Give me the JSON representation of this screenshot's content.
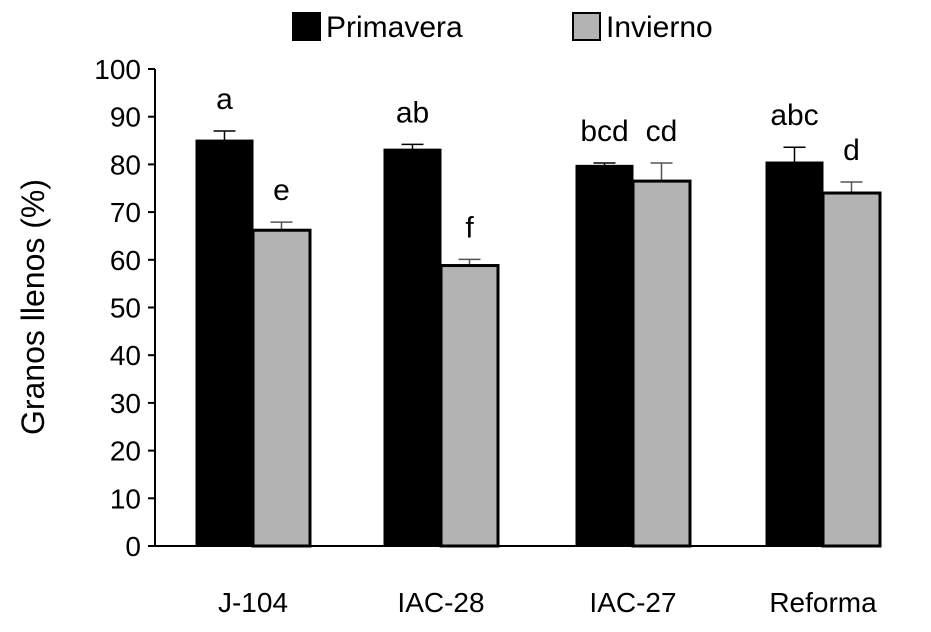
{
  "chart_data": {
    "type": "bar",
    "title": "",
    "xlabel": "",
    "ylabel": "Granos llenos (%)",
    "ylim": [
      0,
      100
    ],
    "yticks": [
      0,
      10,
      20,
      30,
      40,
      50,
      60,
      70,
      80,
      90,
      100
    ],
    "grid": false,
    "legend_position": "top",
    "categories": [
      "J-104",
      "IAC-28",
      "IAC-27",
      "Reforma"
    ],
    "series": [
      {
        "name": "Primavera",
        "color": "#000000",
        "values": [
          85.1,
          83.2,
          79.8,
          80.5
        ],
        "errors": [
          1.9,
          1.0,
          0.5,
          3.1
        ],
        "letters": [
          "a",
          "ab",
          "bcd",
          "abc"
        ]
      },
      {
        "name": "Invierno",
        "color": "#b3b3b3",
        "values": [
          66.2,
          58.8,
          76.5,
          74.0
        ],
        "errors": [
          1.7,
          1.3,
          3.8,
          2.3
        ],
        "letters": [
          "e",
          "f",
          "cd",
          "d"
        ]
      }
    ]
  }
}
